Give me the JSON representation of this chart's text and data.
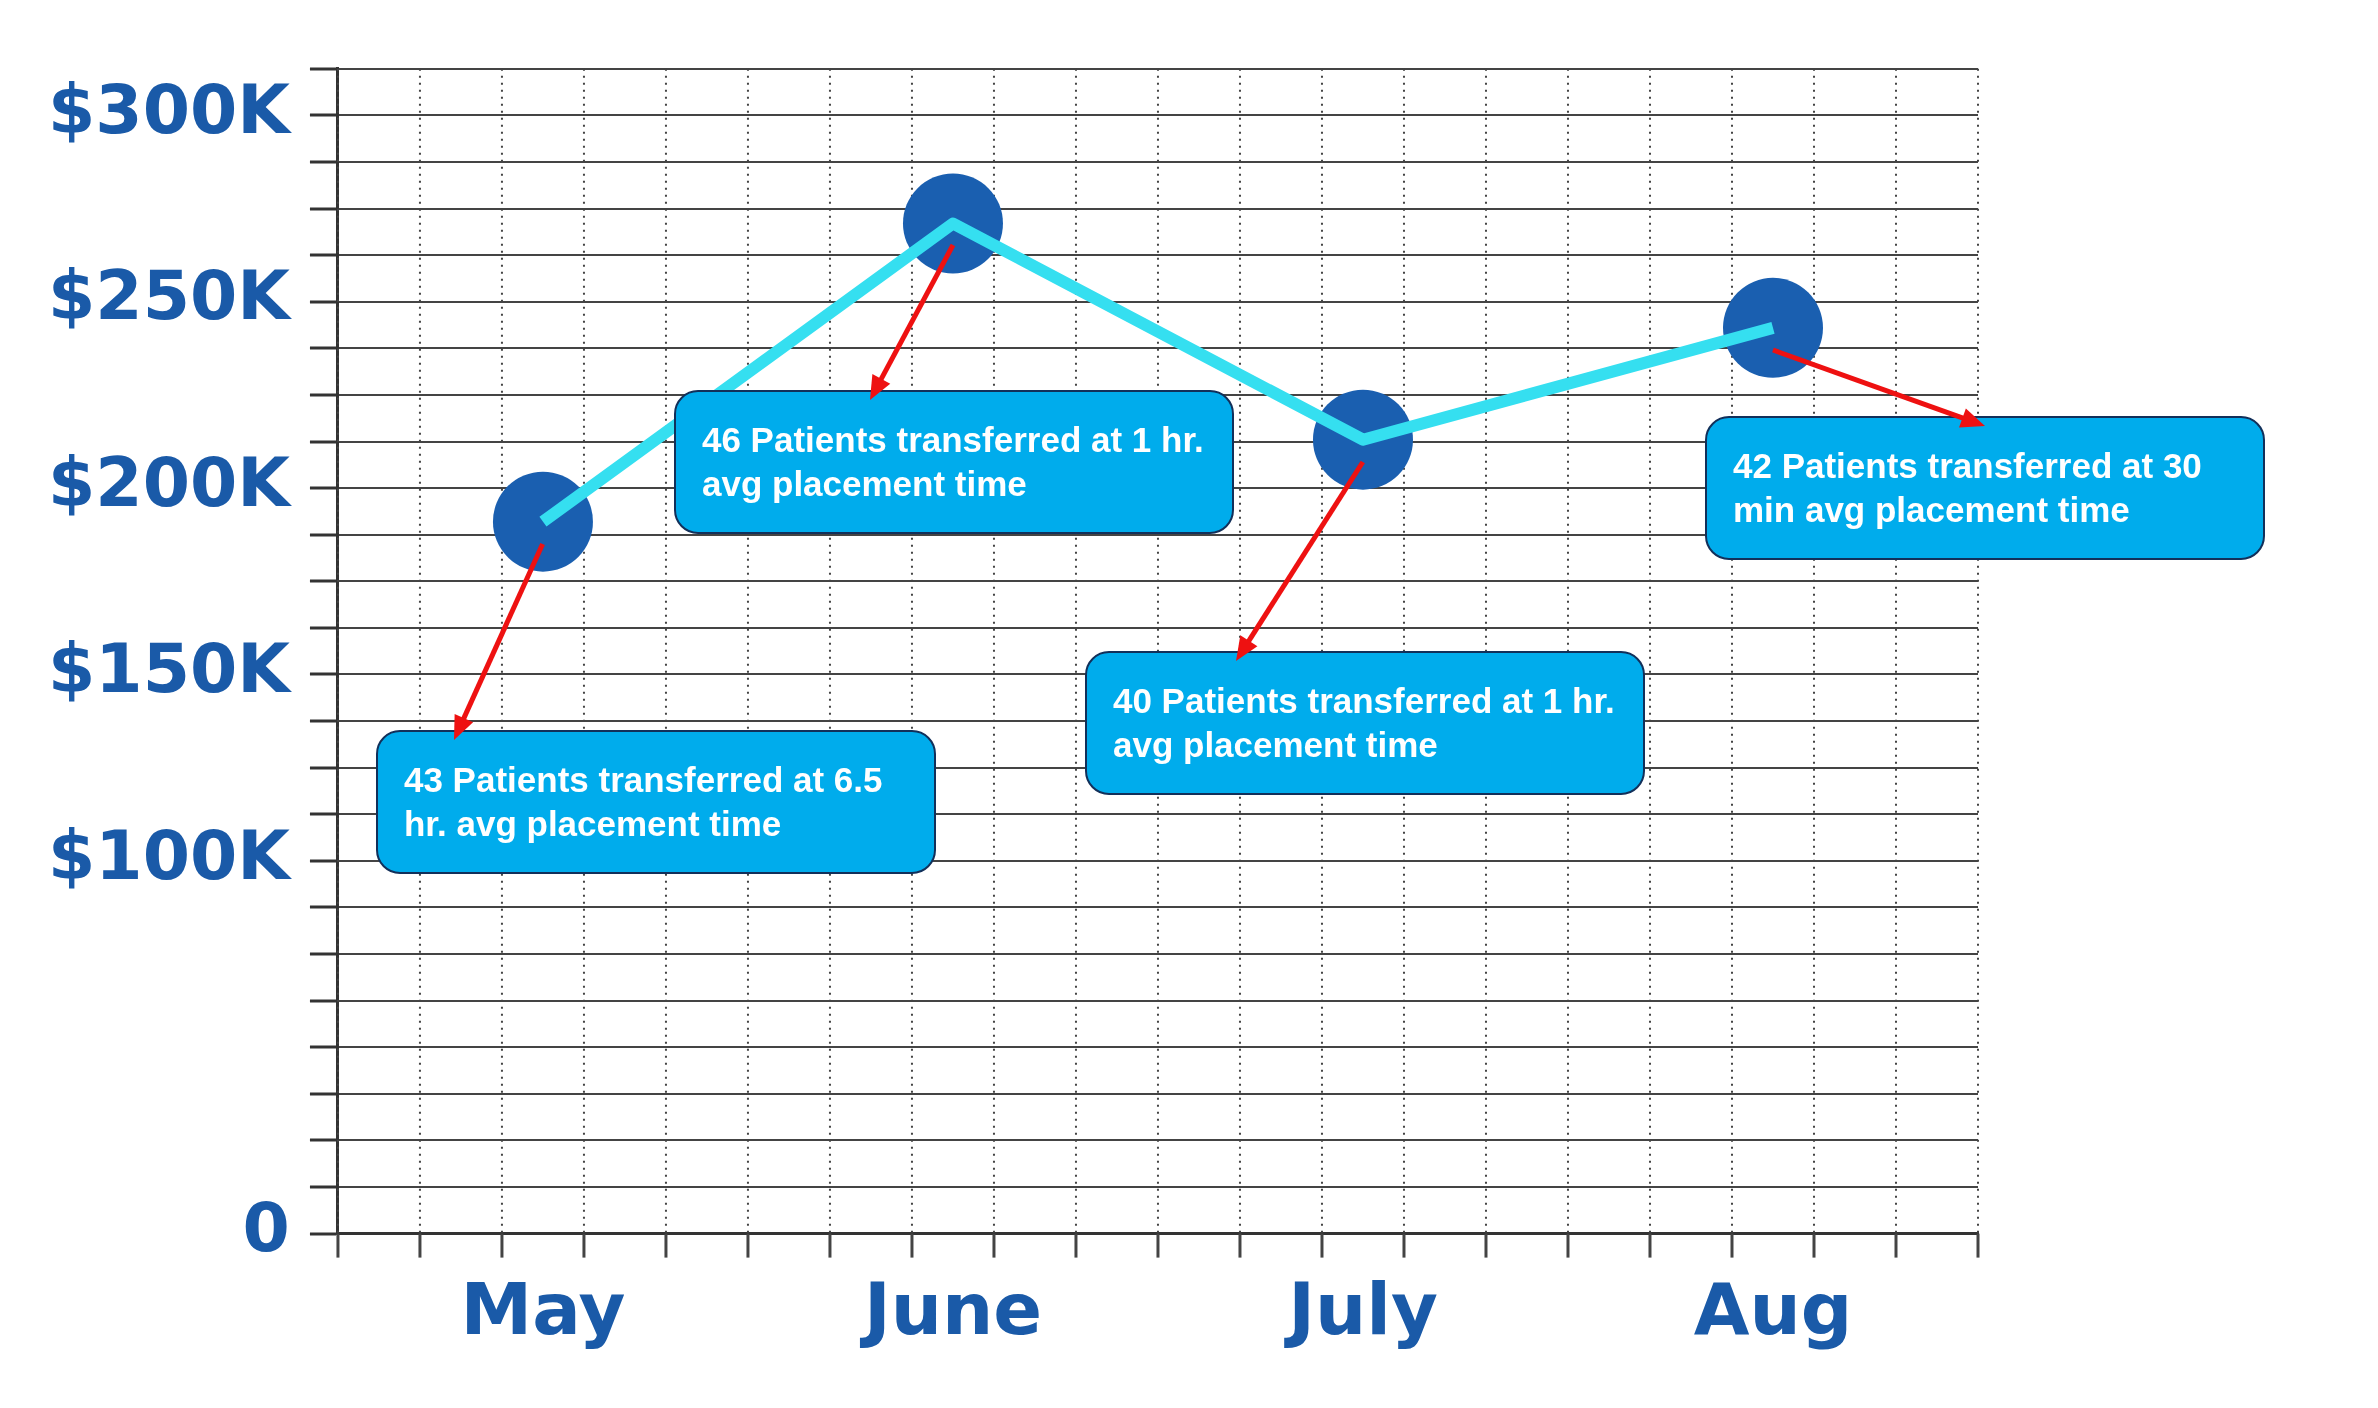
{
  "chart_data": {
    "type": "line",
    "categories": [
      "May",
      "June",
      "July",
      "Aug"
    ],
    "series": [
      {
        "color": "#35dff0",
        "marker": "none",
        "values": [
          191000,
          271000,
          213000,
          243000
        ]
      },
      {
        "type": "scatter",
        "color": "#1a5fb0",
        "values": [
          191000,
          271000,
          213000,
          243000
        ]
      }
    ],
    "marker": "circle",
    "grid": true,
    "ylim": [
      0,
      312500
    ],
    "yticks": [
      0,
      {
        "value": 12500,
        "label": null
      },
      {
        "value": 25000,
        "label": null
      },
      {
        "value": 37500,
        "label": null
      },
      {
        "value": 50000,
        "label": null
      },
      {
        "value": 62500,
        "label": null
      },
      {
        "value": 75000,
        "label": null
      },
      {
        "value": 87500,
        "label": null
      },
      {
        "value": 100000,
        "label": "$100K"
      },
      {
        "value": 112500,
        "label": null
      },
      {
        "value": 125000,
        "label": null
      },
      {
        "value": 137500,
        "label": null
      },
      {
        "value": 150000,
        "label": "$150K"
      },
      {
        "value": 162500,
        "label": null
      },
      {
        "value": 175000,
        "label": null
      },
      {
        "value": 187500,
        "label": null
      },
      {
        "value": 200000,
        "label": "$200K"
      },
      {
        "value": 212500,
        "label": null
      },
      {
        "value": 225000,
        "label": null
      },
      {
        "value": 237500,
        "label": null
      },
      {
        "value": 250000,
        "label": "$250K"
      },
      {
        "value": 262500,
        "label": null
      },
      {
        "value": 275000,
        "label": null
      },
      {
        "value": 287500,
        "label": null
      },
      {
        "value": 300000,
        "label": "$300K"
      },
      {
        "value": 312500,
        "label": null
      }
    ],
    "annotations": [
      "43 Patients transferred at 6.5 hr. avg placement time",
      "46 Patients transferred at 1 hr. avg placement time",
      "40 Patients transferred at 1 hr. avg placement time",
      "42 Patients transferred at 30 min avg placement time"
    ]
  }
}
